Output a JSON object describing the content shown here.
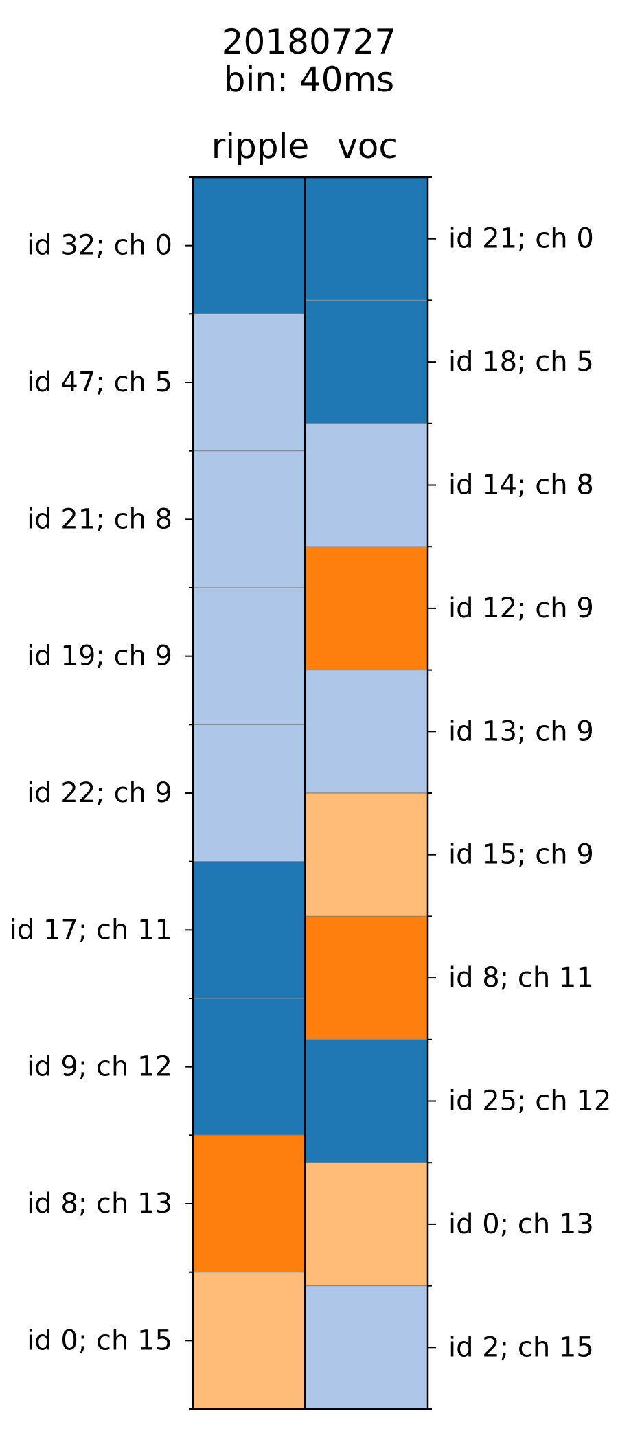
{
  "chart_data": {
    "type": "heatmap",
    "title": "20180727",
    "subtitle": "bin: 40ms",
    "columns": [
      {
        "name": "ripple",
        "labels": [
          "id 32; ch 0",
          "id 47; ch 5",
          "id 21; ch 8",
          "id 19; ch 9",
          "id 22; ch 9",
          "id 17; ch 11",
          "id 9; ch 12",
          "id 8; ch 13",
          "id 0; ch 15"
        ],
        "categories": [
          0,
          1,
          1,
          1,
          1,
          0,
          0,
          2,
          3
        ]
      },
      {
        "name": "voc",
        "labels": [
          "id 21; ch 0",
          "id 18; ch 5",
          "id 14; ch 8",
          "id 12; ch 9",
          "id 13; ch 9",
          "id 15; ch 9",
          "id 8; ch 11",
          "id 25; ch 12",
          "id 0; ch 13",
          "id 2; ch 15"
        ],
        "categories": [
          0,
          0,
          1,
          2,
          1,
          3,
          2,
          0,
          3,
          1
        ]
      }
    ],
    "palette": [
      "#1f77b4",
      "#aec7e8",
      "#ff7f0e",
      "#ffbb78"
    ]
  }
}
